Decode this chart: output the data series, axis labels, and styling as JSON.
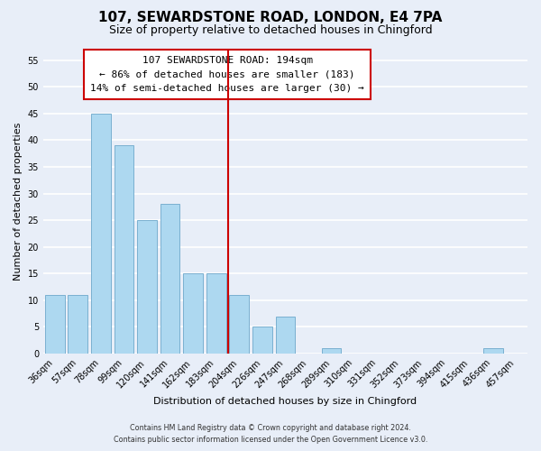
{
  "title": "107, SEWARDSTONE ROAD, LONDON, E4 7PA",
  "subtitle": "Size of property relative to detached houses in Chingford",
  "xlabel": "Distribution of detached houses by size in Chingford",
  "ylabel": "Number of detached properties",
  "bar_labels": [
    "36sqm",
    "57sqm",
    "78sqm",
    "99sqm",
    "120sqm",
    "141sqm",
    "162sqm",
    "183sqm",
    "204sqm",
    "226sqm",
    "247sqm",
    "268sqm",
    "289sqm",
    "310sqm",
    "331sqm",
    "352sqm",
    "373sqm",
    "394sqm",
    "415sqm",
    "436sqm",
    "457sqm"
  ],
  "bar_values": [
    11,
    11,
    45,
    39,
    25,
    28,
    15,
    15,
    11,
    5,
    7,
    0,
    1,
    0,
    0,
    0,
    0,
    0,
    0,
    1,
    0
  ],
  "bar_color": "#add8f0",
  "bar_edge_color": "#7ab0d0",
  "vline_color": "#cc0000",
  "ylim": [
    0,
    57
  ],
  "yticks": [
    0,
    5,
    10,
    15,
    20,
    25,
    30,
    35,
    40,
    45,
    50,
    55
  ],
  "annotation_title": "107 SEWARDSTONE ROAD: 194sqm",
  "annotation_line1": "← 86% of detached houses are smaller (183)",
  "annotation_line2": "14% of semi-detached houses are larger (30) →",
  "annotation_box_color": "#ffffff",
  "annotation_box_edge_color": "#cc0000",
  "footer_line1": "Contains HM Land Registry data © Crown copyright and database right 2024.",
  "footer_line2": "Contains public sector information licensed under the Open Government Licence v3.0.",
  "background_color": "#e8eef8",
  "grid_color": "#ffffff",
  "title_fontsize": 11,
  "subtitle_fontsize": 9,
  "tick_label_fontsize": 7,
  "ylabel_fontsize": 8,
  "xlabel_fontsize": 8,
  "annotation_fontsize": 8
}
